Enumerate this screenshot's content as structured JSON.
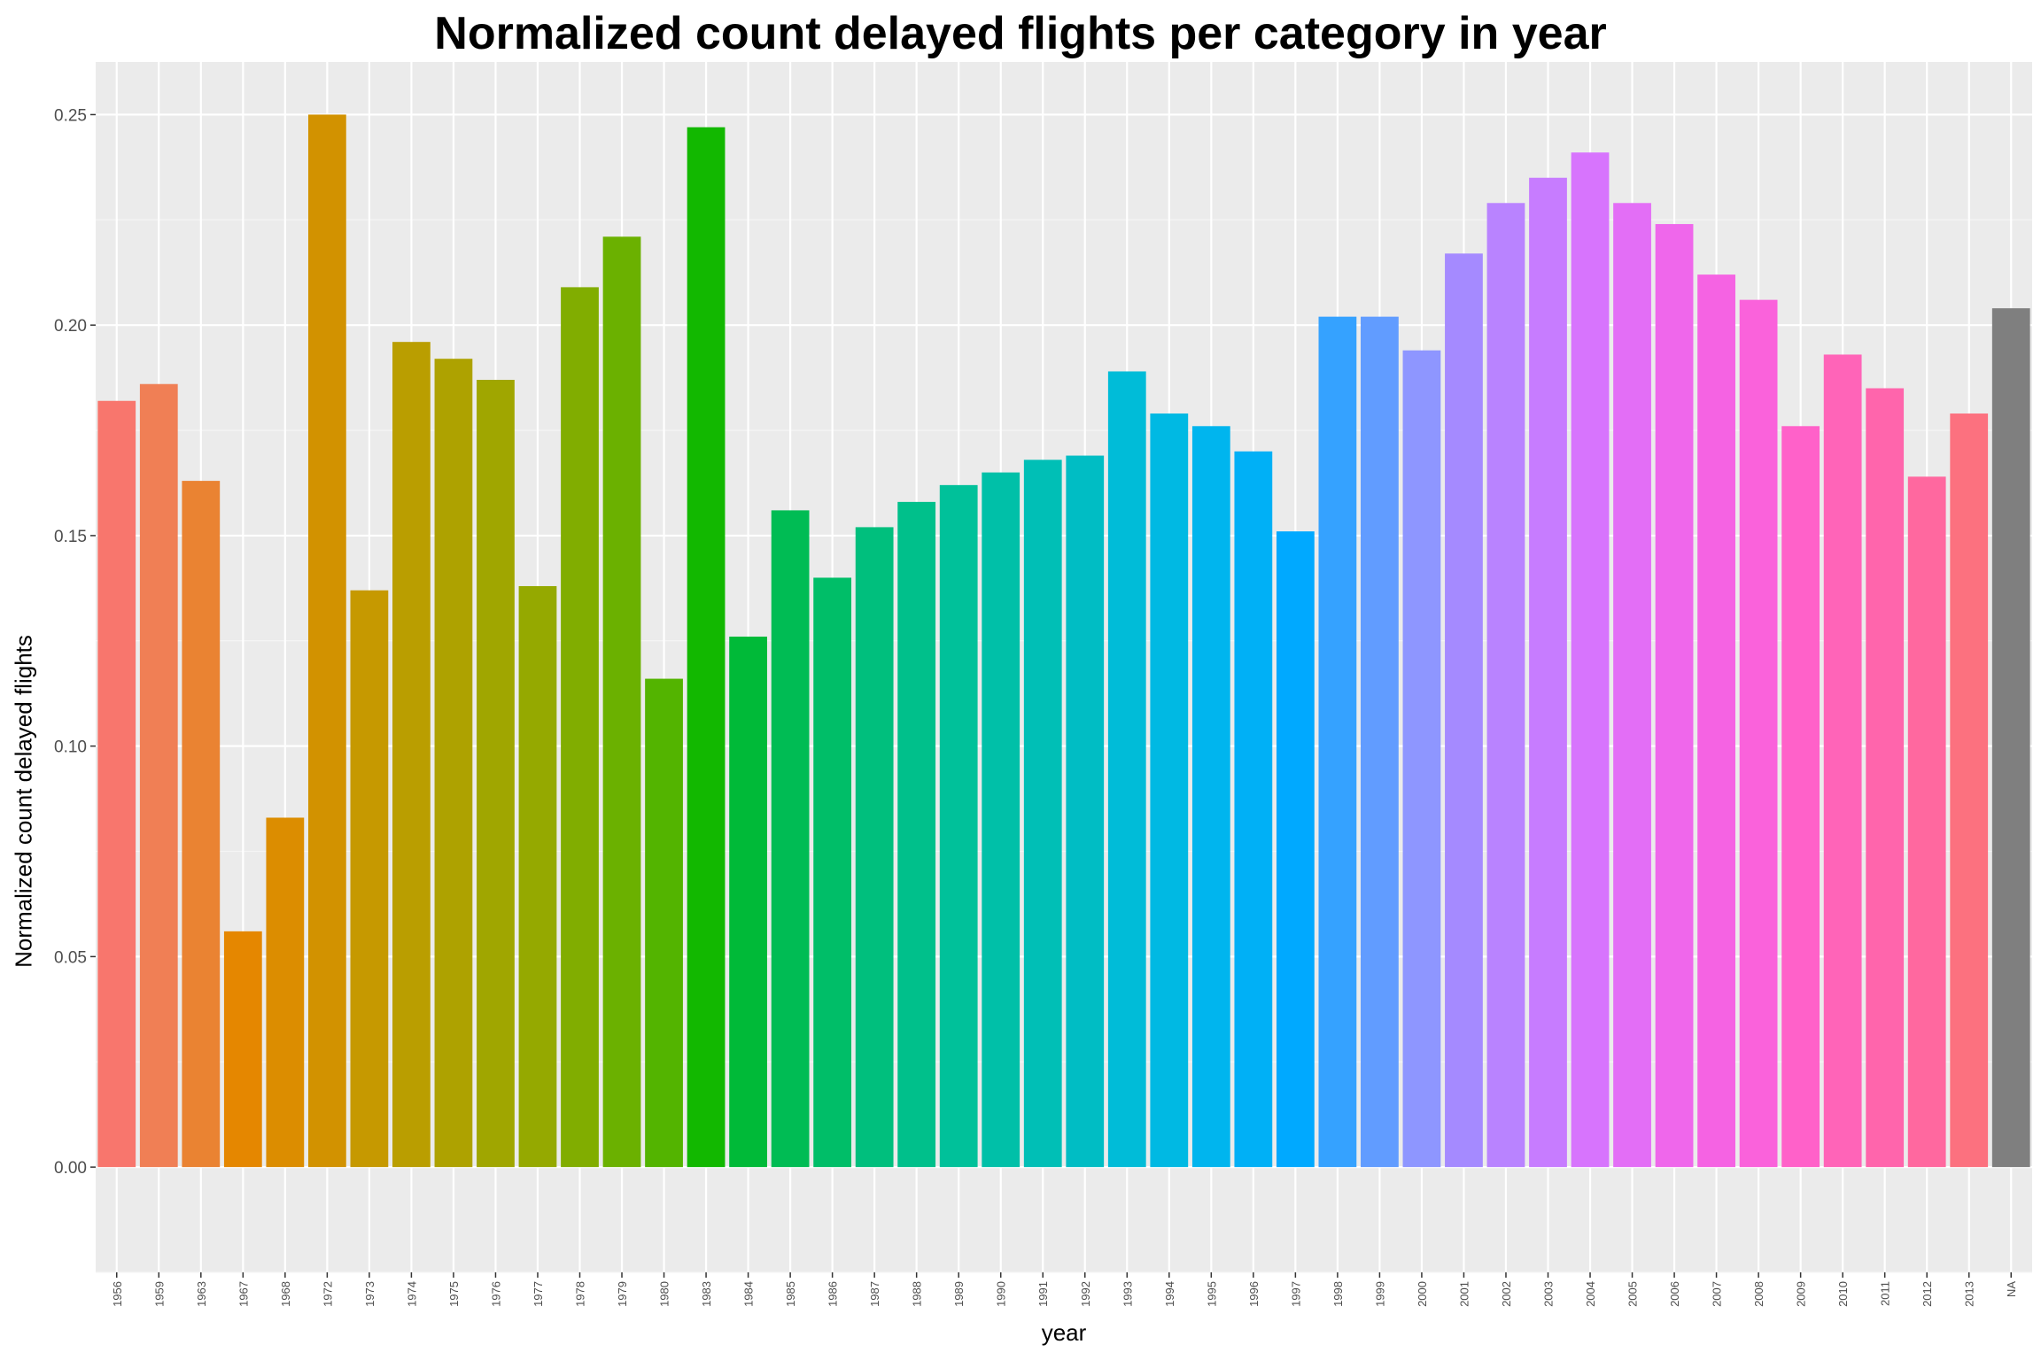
{
  "chart_data": {
    "type": "bar",
    "title": "Normalized count delayed flights per category in year",
    "xlabel": "year",
    "ylabel": "Normalized count delayed flights",
    "ylim": [
      -0.025,
      0.2625
    ],
    "yticks": [
      "0.00",
      "0.05",
      "0.10",
      "0.15",
      "0.20",
      "0.25"
    ],
    "ytick_values": [
      0,
      0.05,
      0.1,
      0.15,
      0.2,
      0.25
    ],
    "grid": true,
    "legend": "none",
    "panel_color": "#ebebeb",
    "categories": [
      "1956",
      "1959",
      "1963",
      "1967",
      "1968",
      "1972",
      "1973",
      "1974",
      "1975",
      "1976",
      "1977",
      "1978",
      "1979",
      "1980",
      "1983",
      "1984",
      "1985",
      "1986",
      "1987",
      "1988",
      "1989",
      "1990",
      "1991",
      "1992",
      "1993",
      "1994",
      "1995",
      "1996",
      "1997",
      "1998",
      "1999",
      "2000",
      "2001",
      "2002",
      "2003",
      "2004",
      "2005",
      "2006",
      "2007",
      "2008",
      "2009",
      "2010",
      "2011",
      "2012",
      "2013",
      "NA"
    ],
    "values": [
      0.182,
      0.186,
      0.163,
      0.056,
      0.083,
      0.25,
      0.137,
      0.196,
      0.192,
      0.187,
      0.138,
      0.209,
      0.221,
      0.116,
      0.247,
      0.126,
      0.156,
      0.14,
      0.152,
      0.158,
      0.162,
      0.165,
      0.168,
      0.169,
      0.189,
      0.179,
      0.176,
      0.17,
      0.151,
      0.202,
      0.202,
      0.194,
      0.217,
      0.229,
      0.235,
      0.241,
      0.229,
      0.224,
      0.212,
      0.206,
      0.176,
      0.193,
      0.185,
      0.164,
      0.179,
      0.204
    ],
    "colors": [
      "#F8766D",
      "#F07F55",
      "#EA8332",
      "#E58700",
      "#DC8D00",
      "#D29200",
      "#C69900",
      "#BA9E00",
      "#AEA200",
      "#A0A600",
      "#95A900",
      "#81AD00",
      "#6BB100",
      "#53B400",
      "#12B800",
      "#00BA38",
      "#00BC54",
      "#00BE68",
      "#00BF7D",
      "#00C08B",
      "#00C19A",
      "#00C0A8",
      "#00BFB6",
      "#00BDC4",
      "#00BCD8",
      "#00B9E3",
      "#00B5EE",
      "#00B0F6",
      "#00A9FF",
      "#35A2FF",
      "#619CFF",
      "#8E96FF",
      "#A58AFF",
      "#B983FF",
      "#C77CFF",
      "#D774FD",
      "#E36EF6",
      "#EF67EB",
      "#F563E3",
      "#FA62DB",
      "#FF61C9",
      "#FF64B8",
      "#FF65AC",
      "#FF689F",
      "#FC717F",
      "#7F7F7F"
    ]
  }
}
